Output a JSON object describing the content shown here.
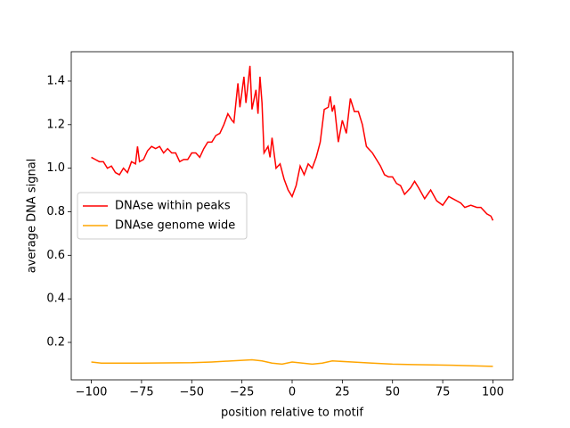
{
  "chart_data": {
    "type": "line",
    "x_label": "position relative to motif",
    "y_label": "average DNA signal",
    "xlim": [
      -110,
      110
    ],
    "ylim": [
      0.028,
      1.535
    ],
    "xticks": [
      {
        "value": -100,
        "label": "−100"
      },
      {
        "value": -75,
        "label": "−75"
      },
      {
        "value": -50,
        "label": "−50"
      },
      {
        "value": -25,
        "label": "−25"
      },
      0,
      25,
      50,
      75,
      100
    ],
    "yticks": [
      0.2,
      0.4,
      0.6,
      0.8,
      {
        "value": 1,
        "label": "1.0"
      },
      1.2,
      1.4
    ],
    "legend": "center left",
    "series": [
      {
        "name": "DNAse within peaks",
        "color": "#ff0000",
        "x": [
          -100,
          -98,
          -96,
          -94,
          -92,
          -90,
          -88,
          -86,
          -84,
          -82,
          -80,
          -78,
          -77,
          -76,
          -74,
          -72,
          -70,
          -68,
          -66,
          -64,
          -62,
          -60,
          -58,
          -56,
          -54,
          -52,
          -50,
          -48,
          -46,
          -44,
          -42,
          -40,
          -38,
          -36,
          -34,
          -32,
          -30,
          -29,
          -27,
          -26,
          -24,
          -23,
          -21,
          -20,
          -18,
          -17,
          -16,
          -15,
          -14,
          -12,
          -11,
          -10,
          -8,
          -6,
          -4,
          -2,
          0,
          2,
          4,
          6,
          8,
          10,
          12,
          14,
          16,
          18,
          19,
          20,
          21,
          23,
          25,
          27,
          29,
          31,
          33,
          35,
          37,
          40,
          42,
          44,
          46,
          48,
          50,
          52,
          54,
          56,
          59,
          61,
          63,
          66,
          69,
          72,
          75,
          78,
          80,
          82,
          84,
          86,
          89,
          92,
          94,
          97,
          99,
          100
        ],
        "values": [
          1.05,
          1.04,
          1.03,
          1.03,
          1.0,
          1.01,
          0.98,
          0.97,
          1.0,
          0.98,
          1.03,
          1.02,
          1.1,
          1.03,
          1.04,
          1.08,
          1.1,
          1.09,
          1.1,
          1.07,
          1.09,
          1.07,
          1.07,
          1.03,
          1.04,
          1.04,
          1.07,
          1.07,
          1.05,
          1.09,
          1.12,
          1.12,
          1.15,
          1.16,
          1.2,
          1.25,
          1.22,
          1.21,
          1.39,
          1.28,
          1.42,
          1.3,
          1.47,
          1.27,
          1.36,
          1.25,
          1.42,
          1.3,
          1.07,
          1.1,
          1.05,
          1.14,
          1.0,
          1.02,
          0.95,
          0.9,
          0.87,
          0.92,
          1.01,
          0.97,
          1.02,
          1.0,
          1.05,
          1.12,
          1.27,
          1.28,
          1.33,
          1.26,
          1.29,
          1.12,
          1.22,
          1.16,
          1.32,
          1.26,
          1.26,
          1.2,
          1.1,
          1.07,
          1.04,
          1.01,
          0.97,
          0.96,
          0.96,
          0.93,
          0.92,
          0.88,
          0.91,
          0.94,
          0.91,
          0.86,
          0.9,
          0.85,
          0.83,
          0.87,
          0.86,
          0.85,
          0.84,
          0.82,
          0.83,
          0.82,
          0.82,
          0.79,
          0.78,
          0.76
        ]
      },
      {
        "name": "DNAse genome wide",
        "color": "#ffa500",
        "x": [
          -100,
          -95,
          -85,
          -75,
          -50,
          -40,
          -30,
          -20,
          -15,
          -10,
          -5,
          0,
          10,
          15,
          20,
          30,
          40,
          50,
          60,
          80,
          100
        ],
        "values": [
          0.11,
          0.105,
          0.105,
          0.105,
          0.107,
          0.11,
          0.115,
          0.12,
          0.115,
          0.105,
          0.1,
          0.11,
          0.1,
          0.105,
          0.115,
          0.11,
          0.105,
          0.1,
          0.098,
          0.095,
          0.09
        ]
      }
    ]
  }
}
